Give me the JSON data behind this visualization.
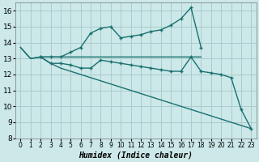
{
  "xlabel": "Humidex (Indice chaleur)",
  "background_color": "#cce8e8",
  "grid_color": "#aacccc",
  "line_color": "#1a7070",
  "xlim": [
    -0.5,
    23.5
  ],
  "ylim": [
    8,
    16.5
  ],
  "yticks": [
    8,
    9,
    10,
    11,
    12,
    13,
    14,
    15,
    16
  ],
  "xtick_labels": [
    "0",
    "1",
    "2",
    "3",
    "4",
    "5",
    "6",
    "7",
    "8",
    "9",
    "10",
    "11",
    "12",
    "13",
    "14",
    "15",
    "16",
    "17",
    "18",
    "19",
    "20",
    "21",
    "22",
    "23"
  ],
  "line1_x": [
    0,
    1,
    2,
    3,
    4,
    5,
    6,
    7,
    8,
    9,
    10,
    11,
    12,
    13,
    14,
    15,
    16,
    17,
    18
  ],
  "line1_y": [
    13.7,
    13.0,
    13.1,
    13.1,
    13.1,
    13.1,
    13.1,
    13.1,
    13.1,
    13.1,
    13.1,
    13.1,
    13.1,
    13.1,
    13.1,
    13.1,
    13.1,
    13.1,
    13.1
  ],
  "line2_x": [
    2,
    3,
    4,
    5,
    6,
    7,
    8,
    9,
    10,
    11,
    12,
    13,
    14,
    15,
    16,
    17,
    18
  ],
  "line2_y": [
    13.1,
    13.1,
    13.1,
    13.4,
    13.7,
    14.6,
    14.9,
    15.0,
    14.3,
    14.4,
    14.5,
    14.7,
    14.8,
    15.1,
    15.5,
    16.2,
    13.7
  ],
  "line3_x": [
    2,
    3,
    4,
    5,
    6,
    7,
    8,
    9,
    10,
    11,
    12,
    13,
    14,
    15,
    16,
    17,
    18,
    19,
    20,
    21,
    22,
    23
  ],
  "line3_y": [
    13.1,
    12.7,
    12.7,
    12.6,
    12.4,
    12.4,
    12.9,
    12.8,
    12.7,
    12.6,
    12.5,
    12.4,
    12.3,
    12.2,
    12.2,
    13.1,
    12.2,
    12.1,
    12.0,
    11.8,
    9.8,
    8.6
  ],
  "line4_x": [
    0,
    1,
    2,
    3,
    4,
    5,
    6,
    7,
    8,
    9,
    10,
    11,
    12,
    13,
    14,
    15,
    16,
    17,
    18,
    19,
    20,
    21,
    22,
    23
  ],
  "line4_y": [
    13.7,
    13.0,
    13.1,
    12.7,
    12.4,
    12.2,
    12.0,
    11.8,
    11.6,
    11.4,
    11.2,
    11.0,
    10.8,
    10.6,
    10.4,
    10.2,
    10.0,
    9.8,
    9.6,
    9.4,
    9.2,
    9.0,
    8.8,
    8.6
  ]
}
